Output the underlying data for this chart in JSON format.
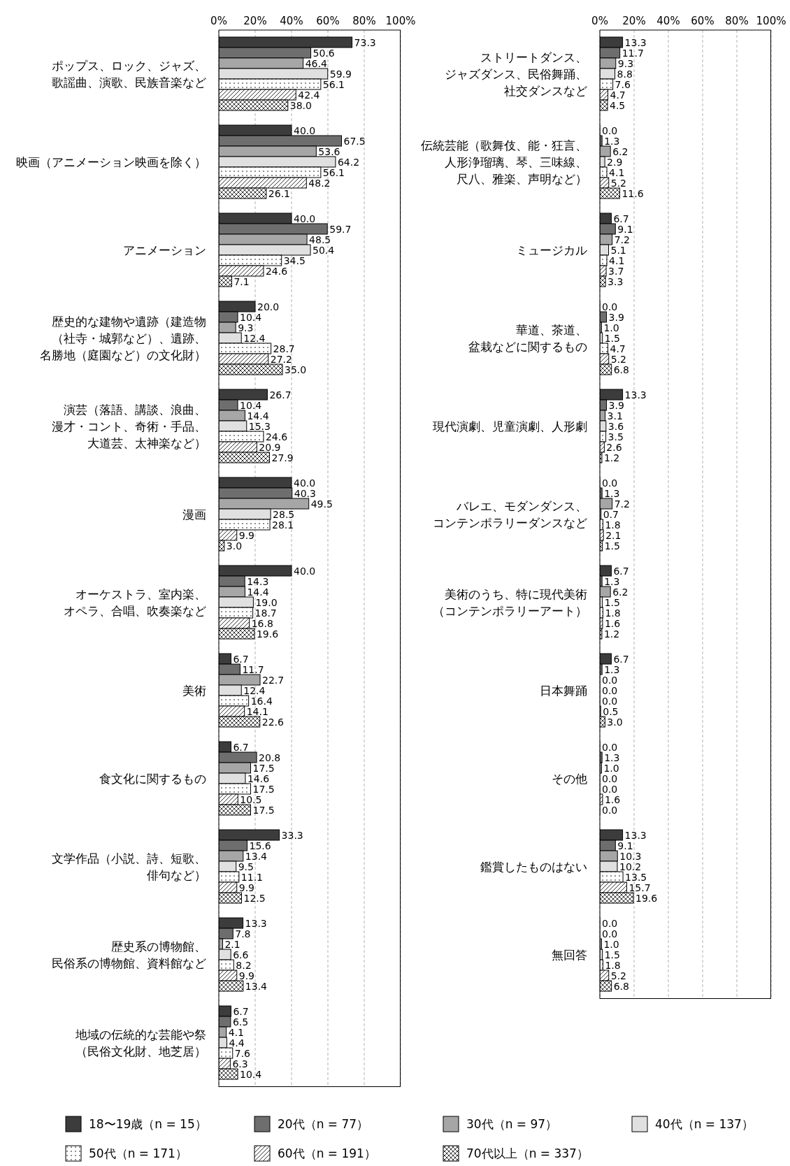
{
  "chart_data": [
    {
      "type": "bar",
      "orientation": "horizontal",
      "categories": [
        "ポップス、ロック、ジャズ、歌謡曲、演歌、民族音楽など",
        "映画（アニメーション映画を除く）",
        "アニメーション",
        "歴史的な建物や遺跡（建造物（社寺・城郭など）、遺跡、名勝地（庭園など）の文化財）",
        "演芸（落語、講談、浪曲、漫才・コント、奇術・手品、大道芸、太神楽など）",
        "漫画",
        "オーケストラ、室内楽、オペラ、合唱、吹奏楽など",
        "美術",
        "食文化に関するもの",
        "文学作品（小説、詩、短歌、俳句など）",
        "歴史系の博物館、民俗系の博物館、資料館など",
        "地域の伝統的な芸能や祭（民俗文化財、地芝居）"
      ],
      "series": [
        {
          "name": "18〜19歳（n = 15）",
          "color": "#3c3c3c",
          "values": [
            73.3,
            40.0,
            40.0,
            20.0,
            26.7,
            40.0,
            40.0,
            6.7,
            6.7,
            33.3,
            13.3,
            6.7
          ],
          "value_labels": [
            "73.3",
            "40.0",
            "40.0",
            "20.0",
            "26.7",
            "40.0",
            "40.0",
            "6.7",
            "6.7",
            "33.3",
            "13.3",
            "6.7"
          ]
        },
        {
          "name": "20代（n = 77）",
          "color": "#6e6e6e",
          "values": [
            50.6,
            67.5,
            59.7,
            10.4,
            10.4,
            40.3,
            14.3,
            11.7,
            20.8,
            15.6,
            7.8,
            6.5
          ],
          "value_labels": [
            "50.6",
            "67.5",
            "59.7",
            "10.4",
            "10.4",
            "40.3",
            "14.3",
            "11.7",
            "20.8",
            "15.6",
            "7.8",
            "6.5"
          ]
        },
        {
          "name": "30代（n = 97）",
          "color": "#a6a6a6",
          "values": [
            46.4,
            53.6,
            48.5,
            9.3,
            14.4,
            49.5,
            14.4,
            22.7,
            17.5,
            13.4,
            2.1,
            4.1
          ],
          "value_labels": [
            "46.4",
            "53.6",
            "48.5",
            "9.3",
            "14.4",
            "49.5",
            "14.4",
            "22.7",
            "17.5",
            "13.4",
            "2.1",
            "4.1"
          ]
        },
        {
          "name": "40代（n = 137）",
          "color": "#e0e0e0",
          "values": [
            59.9,
            64.2,
            50.4,
            12.4,
            15.3,
            28.5,
            19.0,
            12.4,
            14.6,
            9.5,
            6.6,
            4.4
          ],
          "value_labels": [
            "59.9",
            "64.2",
            "50.4",
            "12.4",
            "15.3",
            "28.5",
            "19.0",
            "12.4",
            "14.6",
            "9.5",
            "6.6",
            "4.4"
          ]
        },
        {
          "name": "50代（n = 171）",
          "color": "#ffffff",
          "values": [
            56.1,
            56.1,
            34.5,
            28.7,
            24.6,
            28.1,
            18.7,
            16.4,
            17.5,
            11.1,
            8.2,
            7.6
          ],
          "value_labels": [
            "56.1",
            "56.1",
            "34.5",
            "28.7",
            "24.6",
            "28.1",
            "18.7",
            "16.4",
            "17.5",
            "11.1",
            "8.2",
            "7.6"
          ]
        },
        {
          "name": "60代（n = 191）",
          "color": "#ffffff",
          "values": [
            42.4,
            48.2,
            24.6,
            27.2,
            20.9,
            9.9,
            16.8,
            14.1,
            10.5,
            9.9,
            9.9,
            6.3
          ],
          "value_labels": [
            "42.4",
            "48.2",
            "24.6",
            "27.2",
            "20.9",
            "9.9",
            "16.8",
            "14.1",
            "10.5",
            "9.9",
            "9.9",
            "6.3"
          ]
        },
        {
          "name": "70代以上（n = 337）",
          "color": "#ffffff",
          "values": [
            38.0,
            26.1,
            7.1,
            35.0,
            27.9,
            3.0,
            19.6,
            22.6,
            17.5,
            12.5,
            13.4,
            10.4
          ],
          "value_labels": [
            "38.0",
            "26.1",
            "7.1",
            "35.0",
            "27.9",
            "3.0",
            "19.6",
            "22.6",
            "17.5",
            "12.5",
            "13.4",
            "10.4"
          ]
        }
      ],
      "xlim": [
        0,
        100
      ],
      "xticks": [
        {
          "value": 0,
          "label": "0%"
        },
        {
          "value": 20,
          "label": "20%"
        },
        {
          "value": 40,
          "label": "40%"
        },
        {
          "value": 60,
          "label": "60%"
        },
        {
          "value": 80,
          "label": "80%"
        },
        {
          "value": 100,
          "label": "100%"
        }
      ],
      "grid": "x",
      "legend": "bottom"
    },
    {
      "type": "bar",
      "orientation": "horizontal",
      "categories": [
        "ストリートダンス、ジャズダンス、民俗舞踊、社交ダンスなど",
        "伝統芸能（歌舞伎、能・狂言、人形浄瑠璃、琴、三味線、尺八、雅楽、声明など）",
        "ミュージカル",
        "華道、茶道、盆栽などに関するもの",
        "現代演劇、児童演劇、人形劇",
        "バレエ、モダンダンス、コンテンポラリーダンスなど",
        "美術のうち、特に現代美術（コンテンポラリーアート）",
        "日本舞踊",
        "その他",
        "鑑賞したものはない",
        "無回答"
      ],
      "series": [
        {
          "name": "18〜19歳（n = 15）",
          "color": "#3c3c3c",
          "values": [
            13.3,
            0.0,
            6.7,
            0.0,
            13.3,
            0.0,
            6.7,
            6.7,
            0.0,
            13.3,
            0.0
          ],
          "value_labels": [
            "13.3",
            "0.0",
            "6.7",
            "0.0",
            "13.3",
            "0.0",
            "6.7",
            "6.7",
            "0.0",
            "13.3",
            "0.0"
          ]
        },
        {
          "name": "20代（n = 77）",
          "color": "#6e6e6e",
          "values": [
            11.7,
            1.3,
            9.1,
            3.9,
            3.9,
            1.3,
            1.3,
            1.3,
            1.3,
            9.1,
            0.0
          ],
          "value_labels": [
            "11.7",
            "1.3",
            "9.1",
            "3.9",
            "3.9",
            "1.3",
            "1.3",
            "1.3",
            "1.3",
            "9.1",
            "0.0"
          ]
        },
        {
          "name": "30代（n = 97）",
          "color": "#a6a6a6",
          "values": [
            9.3,
            6.2,
            7.2,
            1.0,
            3.1,
            7.2,
            6.2,
            0.0,
            1.0,
            10.3,
            1.0
          ],
          "value_labels": [
            "9.3",
            "6.2",
            "7.2",
            "1.0",
            "3.1",
            "7.2",
            "6.2",
            "0.0",
            "1.0",
            "10.3",
            "1.0"
          ]
        },
        {
          "name": "40代（n = 137）",
          "color": "#e0e0e0",
          "values": [
            8.8,
            2.9,
            5.1,
            1.5,
            3.6,
            0.7,
            1.5,
            0.0,
            0.0,
            10.2,
            1.5
          ],
          "value_labels": [
            "8.8",
            "2.9",
            "5.1",
            "1.5",
            "3.6",
            "0.7",
            "1.5",
            "0.0",
            "0.0",
            "10.2",
            "1.5"
          ]
        },
        {
          "name": "50代（n = 171）",
          "color": "#ffffff",
          "values": [
            7.6,
            4.1,
            4.1,
            4.7,
            3.5,
            1.8,
            1.8,
            0.0,
            0.0,
            13.5,
            1.8
          ],
          "value_labels": [
            "7.6",
            "4.1",
            "4.1",
            "4.7",
            "3.5",
            "1.8",
            "1.8",
            "0.0",
            "0.0",
            "13.5",
            "1.8"
          ]
        },
        {
          "name": "60代（n = 191）",
          "color": "#ffffff",
          "values": [
            4.7,
            5.2,
            3.7,
            5.2,
            2.6,
            2.1,
            1.6,
            0.5,
            1.6,
            15.7,
            5.2
          ],
          "value_labels": [
            "4.7",
            "5.2",
            "3.7",
            "5.2",
            "2.6",
            "2.1",
            "1.6",
            "0.5",
            "1.6",
            "15.7",
            "5.2"
          ]
        },
        {
          "name": "70代以上（n = 337）",
          "color": "#ffffff",
          "values": [
            4.5,
            11.6,
            3.3,
            6.8,
            1.2,
            1.5,
            1.2,
            3.0,
            0.0,
            19.6,
            6.8
          ],
          "value_labels": [
            "4.5",
            "11.6",
            "3.3",
            "6.8",
            "1.2",
            "1.5",
            "1.2",
            "3.0",
            "0.0",
            "19.6",
            "6.8"
          ]
        }
      ],
      "xlim": [
        0,
        100
      ],
      "xticks": [
        {
          "value": 0,
          "label": "0%"
        },
        {
          "value": 20,
          "label": "20%"
        },
        {
          "value": 40,
          "label": "40%"
        },
        {
          "value": 60,
          "label": "60%"
        },
        {
          "value": 80,
          "label": "80%"
        },
        {
          "value": 100,
          "label": "100%"
        }
      ],
      "grid": "x"
    }
  ]
}
